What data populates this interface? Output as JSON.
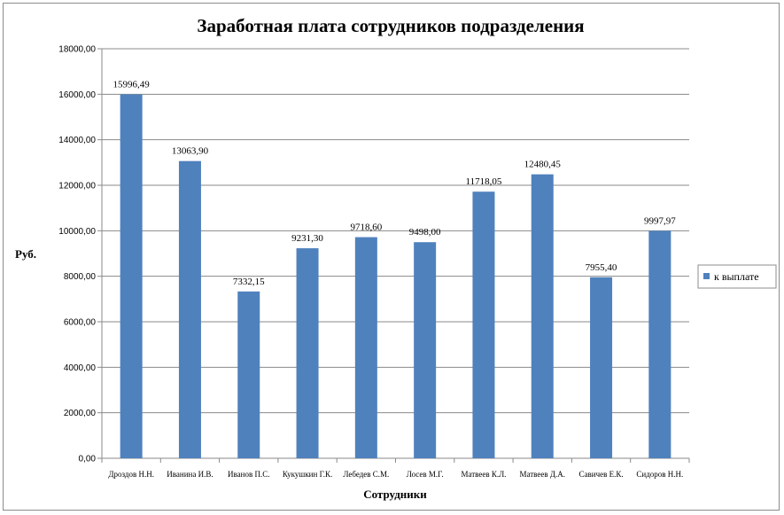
{
  "chart_data": {
    "type": "bar",
    "title": "Заработная плата сотрудников подразделения",
    "xlabel": "Сотрудники",
    "ylabel": "Руб.",
    "ylim": [
      0,
      18000
    ],
    "ytick_step": 2000,
    "ytick_labels": [
      "0,00",
      "2000,00",
      "4000,00",
      "6000,00",
      "8000,00",
      "10000,00",
      "12000,00",
      "14000,00",
      "16000,00",
      "18000,00"
    ],
    "grid": true,
    "legend_position": "right",
    "categories": [
      "Дроздов Н.Н.",
      "Иванина И.В.",
      "Иванов П.С.",
      "Кукушкин Г.К.",
      "Лебедев С.М.",
      "Лосев М.Г.",
      "Матвеев К.Л.",
      "Матвеев Д.А.",
      "Савичев Е.К.",
      "Сидоров Н.Н."
    ],
    "series": [
      {
        "name": "к выплате",
        "color": "#4f81bd",
        "values": [
          15996.49,
          13063.9,
          7332.15,
          9231.3,
          9718.6,
          9498.0,
          11718.05,
          12480.45,
          7955.4,
          9997.97
        ],
        "labels": [
          "15996,49",
          "13063,90",
          "7332,15",
          "9231,30",
          "9718,60",
          "9498,00",
          "11718,05",
          "12480,45",
          "7955,40",
          "9997,97"
        ]
      }
    ]
  }
}
